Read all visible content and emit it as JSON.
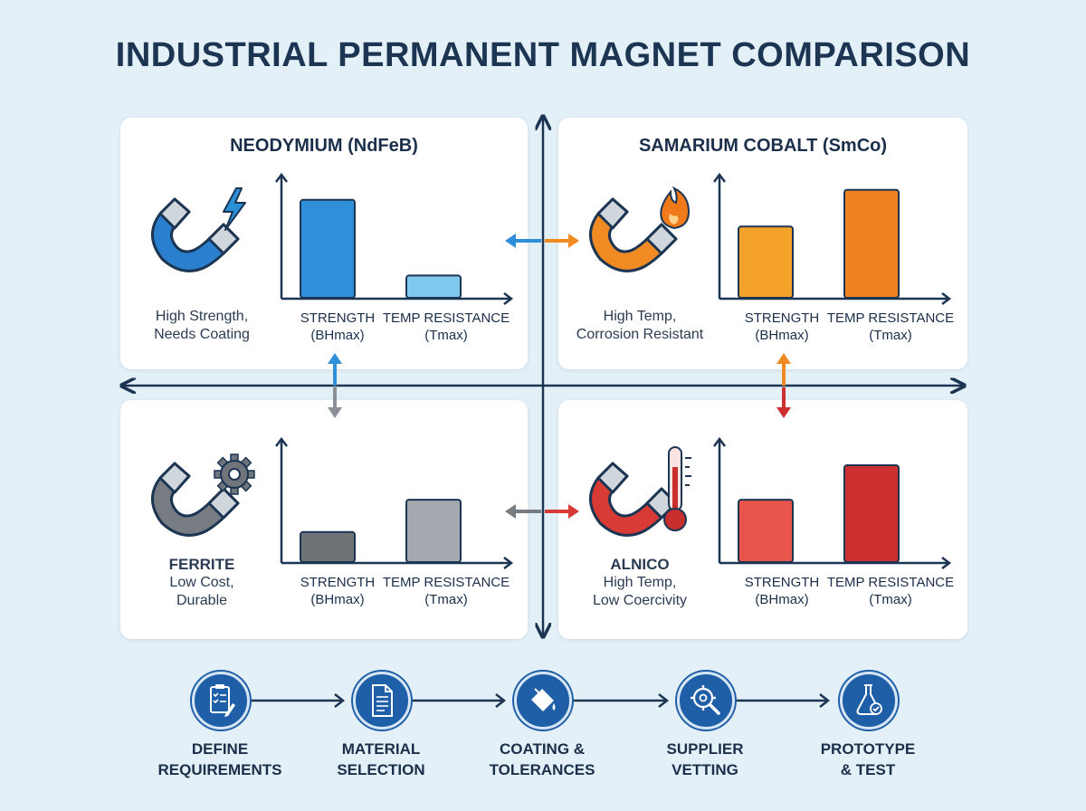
{
  "title": "INDUSTRIAL PERMANENT MAGNET COMPARISON",
  "axis_labels": {
    "strength": [
      "STRENGTH",
      "(BHmax)"
    ],
    "temp": [
      "TEMP RESISTANCE",
      "(Tmax)"
    ]
  },
  "cards": {
    "neodymium": {
      "title": "NEODYMIUM (NdFeB)",
      "name": "",
      "desc": [
        "High Strength,",
        "Needs Coating"
      ],
      "colors": {
        "bar1": "#2f8fd8",
        "bar2": "#7fc8ee",
        "magnet": "#2a7fcf",
        "accent": "#2b8fd8"
      },
      "icon": "lightning-icon"
    },
    "samarium": {
      "title": "SAMARIUM COBALT (SmCo)",
      "name": "",
      "desc": [
        "High Temp,",
        "Corrosion Resistant"
      ],
      "colors": {
        "bar1": "#f5a22b",
        "bar2": "#ef8320",
        "magnet": "#f08a22",
        "accent": "#f07a1a"
      },
      "icon": "flame-icon"
    },
    "ferrite": {
      "title": "",
      "name": "FERRITE",
      "desc": [
        "Low Cost,",
        "Durable"
      ],
      "colors": {
        "bar1": "#6f7378",
        "bar2": "#a3a9ae",
        "magnet": "#767c82",
        "accent": "#6f757b"
      },
      "icon": "gear-icon"
    },
    "alnico": {
      "title": "",
      "name": "ALNICO",
      "desc": [
        "High Temp,",
        "Low Coercivity"
      ],
      "colors": {
        "bar1": "#e8554d",
        "bar2": "#cc2f2f",
        "magnet": "#d83a36",
        "accent": "#c72f2f"
      },
      "icon": "thermometer-icon"
    }
  },
  "chart_data": [
    {
      "type": "bar",
      "title": "NEODYMIUM (NdFeB)",
      "categories": [
        "STRENGTH (BHmax)",
        "TEMP RESISTANCE (Tmax)"
      ],
      "values": [
        0.88,
        0.2
      ],
      "ylim": [
        0,
        1
      ]
    },
    {
      "type": "bar",
      "title": "SAMARIUM COBALT (SmCo)",
      "categories": [
        "STRENGTH (BHmax)",
        "TEMP RESISTANCE (Tmax)"
      ],
      "values": [
        0.64,
        0.97
      ],
      "ylim": [
        0,
        1
      ]
    },
    {
      "type": "bar",
      "title": "FERRITE",
      "categories": [
        "STRENGTH (BHmax)",
        "TEMP RESISTANCE (Tmax)"
      ],
      "values": [
        0.27,
        0.56
      ],
      "ylim": [
        0,
        1
      ]
    },
    {
      "type": "bar",
      "title": "ALNICO",
      "categories": [
        "STRENGTH (BHmax)",
        "TEMP RESISTANCE (Tmax)"
      ],
      "values": [
        0.56,
        0.87
      ],
      "ylim": [
        0,
        1
      ]
    }
  ],
  "process": {
    "steps": [
      {
        "label": [
          "DEFINE",
          "REQUIREMENTS"
        ],
        "icon": "checklist-icon"
      },
      {
        "label": [
          "MATERIAL",
          "SELECTION"
        ],
        "icon": "document-icon"
      },
      {
        "label": [
          "COATING &",
          "TOLERANCES"
        ],
        "icon": "paint-bucket-icon"
      },
      {
        "label": [
          "SUPPLIER",
          "VETTING"
        ],
        "icon": "search-gear-icon"
      },
      {
        "label": [
          "PROTOTYPE",
          "& TEST"
        ],
        "icon": "flask-icon"
      }
    ],
    "color": "#1f5fa8"
  }
}
